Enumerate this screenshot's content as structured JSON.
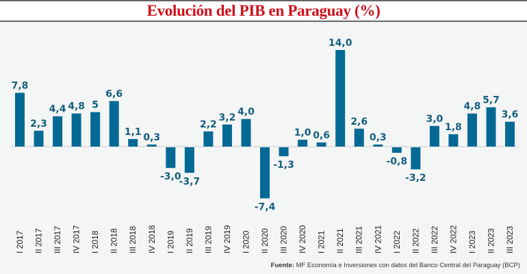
{
  "chart_data": {
    "type": "bar",
    "title": "Evolución del PIB en Paraguay (%)",
    "xlabel": "",
    "ylabel": "",
    "ylim": [
      -8,
      15
    ],
    "grid": false,
    "legend": "none",
    "bar_color": "#046a95",
    "label_color": "#14607e",
    "categories": [
      "I 2017",
      "II 2017",
      "III 2017",
      "IV 2017",
      "I 2018",
      "II 2018",
      "III 2018",
      "IV 2018",
      "I 2019",
      "II 2019",
      "III 2019",
      "IV 2019",
      "I 2020",
      "II 2020",
      "III 2020",
      "IV 2020",
      "I 2021",
      "II 2021",
      "III 2021",
      "IV 2021",
      "I 2022",
      "II 2022",
      "III 2022",
      "IV 2022",
      "I 2023",
      "II 2023",
      "III 2023"
    ],
    "values": [
      7.8,
      2.3,
      4.4,
      4.8,
      5,
      6.6,
      1.1,
      0.3,
      -3.0,
      -3.7,
      2.2,
      3.2,
      4.0,
      -7.4,
      -1.3,
      1.0,
      0.6,
      14.0,
      2.6,
      0.3,
      -0.8,
      -3.2,
      3.0,
      1.8,
      4.8,
      5.7,
      3.6
    ],
    "value_labels": [
      "7,8",
      "2,3",
      "4,4",
      "4,8",
      "5",
      "6,6",
      "1,1",
      "0,3",
      "-3,0",
      "-3,7",
      "2,2",
      "3,2",
      "4,0",
      "-7,4",
      "-1,3",
      "1,0",
      "0,6",
      "14,0",
      "2,6",
      "0,3",
      "-0,8",
      "-3,2",
      "3,0",
      "1,8",
      "4,8",
      "5,7",
      "3,6"
    ]
  },
  "header": {
    "title": "Evolución del PIB en Paraguay (%)"
  },
  "footer": {
    "source_label": "Fuente:",
    "source_text": " MF Economía e Inversiones con datos del Banco Central del Paraguay (BCP)"
  }
}
